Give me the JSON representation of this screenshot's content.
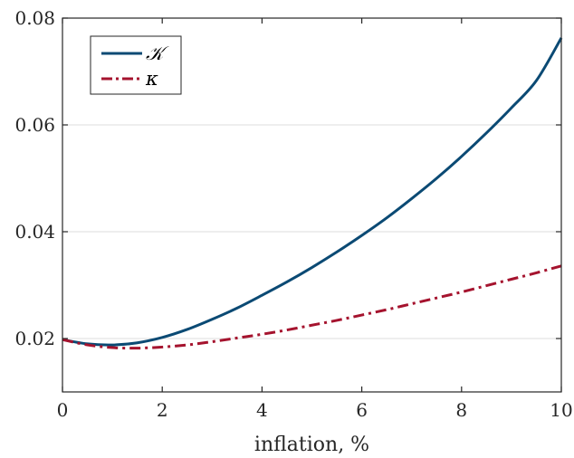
{
  "chart_data": {
    "type": "line",
    "title": "",
    "xlabel": "inflation, %",
    "ylabel": "",
    "xlim": [
      0,
      10
    ],
    "ylim": [
      0.01,
      0.08
    ],
    "xticks": [
      0,
      2,
      4,
      6,
      8,
      10
    ],
    "xtick_labels": [
      "0",
      "2",
      "4",
      "6",
      "8",
      "10"
    ],
    "yticks": [
      0.02,
      0.04,
      0.06,
      0.08
    ],
    "ytick_labels": [
      "0.02",
      "0.04",
      "0.06",
      "0.08"
    ],
    "grid": "horizontal",
    "legend_position": "top-left",
    "series": [
      {
        "name": "𝒦",
        "color": "#0b4a74",
        "style": "solid",
        "x": [
          0,
          0.5,
          1,
          1.5,
          2,
          2.5,
          3,
          3.5,
          4,
          4.5,
          5,
          5.5,
          6,
          6.5,
          7,
          7.5,
          8,
          8.5,
          9,
          9.5,
          10
        ],
        "y": [
          0.0198,
          0.019,
          0.0188,
          0.0192,
          0.0202,
          0.0217,
          0.0236,
          0.0257,
          0.0281,
          0.0306,
          0.0333,
          0.0362,
          0.0393,
          0.0426,
          0.0462,
          0.05,
          0.0541,
          0.0585,
          0.0632,
          0.0683,
          0.0763
        ]
      },
      {
        "name": "κ",
        "color": "#a5132e",
        "style": "dash-dot",
        "x": [
          0,
          0.5,
          1,
          1.5,
          2,
          2.5,
          3,
          3.5,
          4,
          4.5,
          5,
          5.5,
          6,
          6.5,
          7,
          7.5,
          8,
          8.5,
          9,
          9.5,
          10
        ],
        "y": [
          0.0198,
          0.0188,
          0.0183,
          0.0182,
          0.0184,
          0.0188,
          0.0194,
          0.0201,
          0.0208,
          0.0216,
          0.0225,
          0.0234,
          0.0244,
          0.0254,
          0.0265,
          0.0276,
          0.0287,
          0.0299,
          0.0311,
          0.0323,
          0.0336
        ]
      }
    ]
  }
}
